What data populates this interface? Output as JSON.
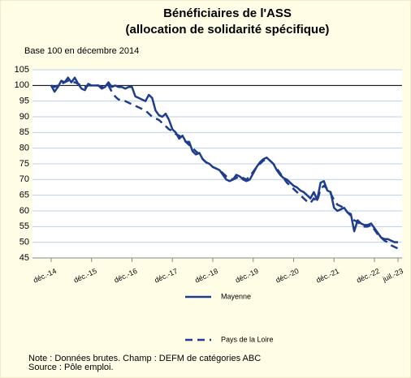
{
  "chart_data": {
    "type": "line",
    "title": [
      "Bénéficiaires de l'ASS",
      "(allocation de solidarité spécifique)"
    ],
    "subtitle": "Base 100 en décembre 2014",
    "categories": [
      "déc.-14",
      null,
      null,
      null,
      null,
      null,
      null,
      null,
      null,
      null,
      null,
      null,
      "déc.-15",
      null,
      null,
      null,
      null,
      null,
      null,
      null,
      null,
      null,
      null,
      null,
      "déc.-16",
      null,
      null,
      null,
      null,
      null,
      null,
      null,
      null,
      null,
      null,
      null,
      "déc.-17",
      null,
      null,
      null,
      null,
      null,
      null,
      null,
      null,
      null,
      null,
      null,
      "déc.-18",
      null,
      null,
      null,
      null,
      null,
      null,
      null,
      null,
      null,
      null,
      null,
      "déc.-19",
      null,
      null,
      null,
      null,
      null,
      null,
      null,
      null,
      null,
      null,
      null,
      "déc.-20",
      null,
      null,
      null,
      null,
      null,
      null,
      null,
      null,
      null,
      null,
      null,
      "déc.-21",
      null,
      null,
      null,
      null,
      null,
      null,
      null,
      null,
      null,
      null,
      null,
      "déc.-22",
      null,
      null,
      null,
      null,
      null,
      null,
      "juil.-23"
    ],
    "series": [
      {
        "name": "Mayenne",
        "color": "#1f3d8c",
        "dash": false,
        "values": [
          100,
          98,
          99.5,
          101.5,
          101,
          102.5,
          101,
          102.5,
          100.5,
          99,
          98.5,
          100.5,
          100,
          100,
          100,
          99,
          99.5,
          101,
          99.5,
          100,
          99.5,
          99.5,
          99,
          99.5,
          99.5,
          96.5,
          96,
          95.5,
          95,
          97,
          96,
          92,
          90.5,
          90,
          91,
          89,
          86,
          85,
          83,
          84,
          82,
          82,
          79,
          78,
          78.5,
          76.5,
          75.5,
          75,
          74,
          73.5,
          73,
          71.5,
          70,
          69.5,
          70,
          71.5,
          71,
          70,
          69.5,
          70,
          72,
          74,
          75.5,
          76.5,
          77,
          76,
          75,
          73,
          71.5,
          70.5,
          70,
          69,
          68,
          67.5,
          66.5,
          66,
          65,
          64,
          66,
          63.5,
          69,
          69.5,
          66.5,
          66,
          61,
          60,
          60.5,
          61,
          59.5,
          59,
          53.5,
          57,
          56,
          55.5,
          55.5,
          56,
          54.5,
          53,
          51.5,
          51,
          51,
          50.5,
          50,
          50
        ]
      },
      {
        "name": "Pays de la Loire",
        "color": "#1f3d8c",
        "dash": true,
        "values": [
          100,
          99.5,
          100,
          100.5,
          101,
          101.5,
          101,
          101,
          100.5,
          100,
          99.5,
          100,
          100,
          100,
          100,
          99.5,
          99.5,
          100,
          98,
          96.5,
          95.5,
          95.5,
          95,
          94.5,
          94,
          93.5,
          93,
          92.5,
          92,
          91,
          90,
          89.5,
          89,
          88,
          87,
          86,
          85.5,
          84.5,
          84,
          83,
          82,
          81,
          80,
          79,
          78,
          76.5,
          75.5,
          75,
          74,
          73.5,
          73,
          72,
          71,
          70.5,
          70,
          70.5,
          71,
          70.5,
          70,
          71,
          72.5,
          74,
          75,
          76,
          76.5,
          76,
          75,
          73.5,
          72,
          70.5,
          69,
          68,
          67,
          66,
          65,
          64,
          63,
          62.5,
          64,
          63,
          67,
          68,
          67,
          65.5,
          63.5,
          62,
          61.5,
          61,
          59.5,
          58.5,
          57,
          56.5,
          55.5,
          55,
          55,
          55.5,
          54,
          52.5,
          51.5,
          50.5,
          50,
          49,
          48.5,
          48
        ]
      }
    ],
    "ylim": [
      45,
      105
    ],
    "yticks": [
      45,
      50,
      55,
      60,
      65,
      70,
      75,
      80,
      85,
      90,
      95,
      100,
      105
    ],
    "reference_line": 100,
    "grid": true,
    "notes": [
      "Note : Données brutes. Champ : DEFM de catégories ABC",
      "Source : Pôle emploi."
    ]
  }
}
